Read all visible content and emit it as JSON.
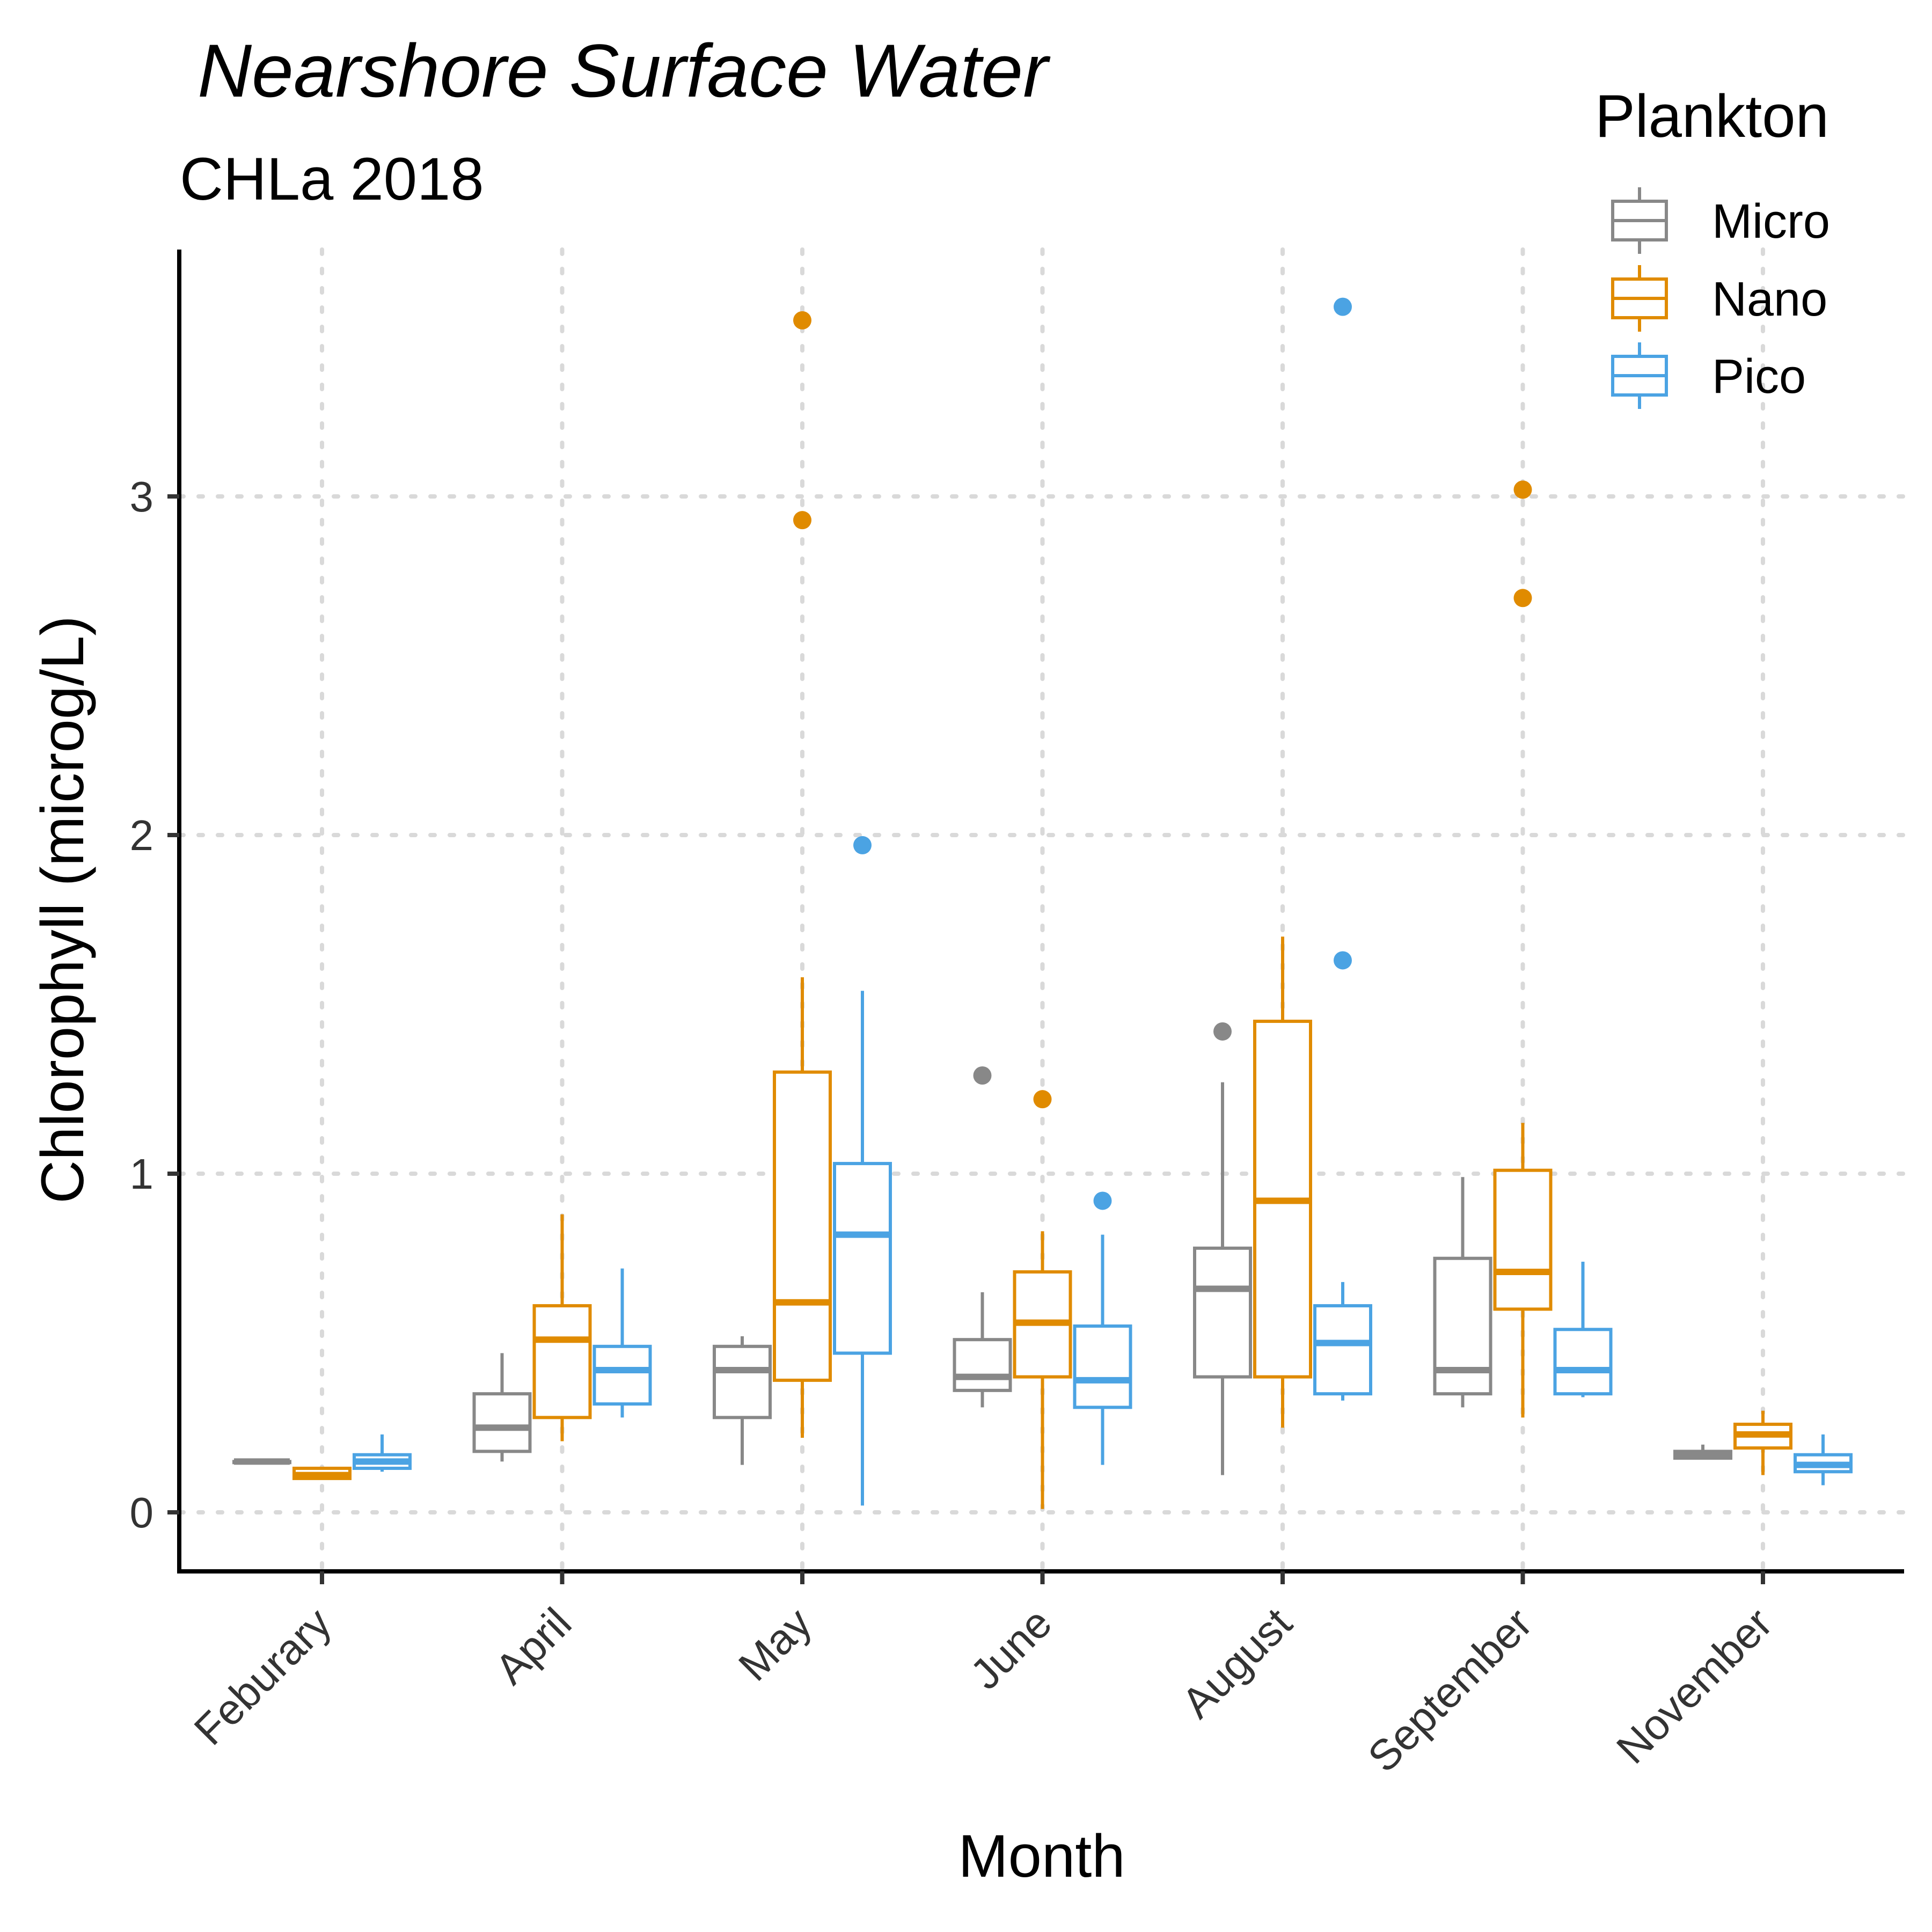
{
  "chart_data": {
    "type": "boxplot",
    "title": "Nearshore Surface Water",
    "subtitle": "CHLa 2018",
    "xlabel": "Month",
    "ylabel": "Chlorophyll (microg/L)",
    "ylim": [
      -0.17,
      3.72
    ],
    "yticks": [
      0,
      1,
      2,
      3
    ],
    "grid": "dotted major gridlines",
    "legend": {
      "title": "Plankton",
      "position": "top-right"
    },
    "categories": [
      "Feburary",
      "April",
      "May",
      "June",
      "August",
      "September",
      "November"
    ],
    "series": [
      {
        "name": "Micro",
        "color": "#888888",
        "boxes": [
          {
            "category": "Feburary",
            "lower": 0.15,
            "q1": 0.15,
            "median": 0.15,
            "q3": 0.15,
            "upper": 0.15,
            "outliers": []
          },
          {
            "category": "April",
            "lower": 0.15,
            "q1": 0.18,
            "median": 0.25,
            "q3": 0.35,
            "upper": 0.47,
            "outliers": []
          },
          {
            "category": "May",
            "lower": 0.14,
            "q1": 0.28,
            "median": 0.42,
            "q3": 0.49,
            "upper": 0.52,
            "outliers": []
          },
          {
            "category": "June",
            "lower": 0.31,
            "q1": 0.36,
            "median": 0.4,
            "q3": 0.51,
            "upper": 0.65,
            "outliers": [
              1.29
            ]
          },
          {
            "category": "August",
            "lower": 0.11,
            "q1": 0.4,
            "median": 0.66,
            "q3": 0.78,
            "upper": 1.27,
            "outliers": [
              1.42
            ]
          },
          {
            "category": "September",
            "lower": 0.31,
            "q1": 0.35,
            "median": 0.42,
            "q3": 0.75,
            "upper": 0.99,
            "outliers": []
          },
          {
            "category": "November",
            "lower": 0.16,
            "q1": 0.16,
            "median": 0.17,
            "q3": 0.18,
            "upper": 0.2,
            "outliers": []
          }
        ]
      },
      {
        "name": "Nano",
        "color": "#E08B00",
        "boxes": [
          {
            "category": "Feburary",
            "lower": 0.1,
            "q1": 0.1,
            "median": 0.11,
            "q3": 0.13,
            "upper": 0.13,
            "outliers": []
          },
          {
            "category": "April",
            "lower": 0.21,
            "q1": 0.28,
            "median": 0.51,
            "q3": 0.61,
            "upper": 0.88,
            "outliers": []
          },
          {
            "category": "May",
            "lower": 0.22,
            "q1": 0.39,
            "median": 0.62,
            "q3": 1.3,
            "upper": 1.58,
            "outliers": [
              2.93,
              3.52
            ]
          },
          {
            "category": "June",
            "lower": 0.01,
            "q1": 0.4,
            "median": 0.56,
            "q3": 0.71,
            "upper": 0.83,
            "outliers": [
              1.22
            ]
          },
          {
            "category": "August",
            "lower": 0.25,
            "q1": 0.4,
            "median": 0.92,
            "q3": 1.45,
            "upper": 1.7,
            "outliers": []
          },
          {
            "category": "September",
            "lower": 0.28,
            "q1": 0.6,
            "median": 0.71,
            "q3": 1.01,
            "upper": 1.15,
            "outliers": [
              2.7,
              3.02
            ]
          },
          {
            "category": "November",
            "lower": 0.11,
            "q1": 0.19,
            "median": 0.23,
            "q3": 0.26,
            "upper": 0.3,
            "outliers": []
          }
        ]
      },
      {
        "name": "Pico",
        "color": "#4BA3E3",
        "boxes": [
          {
            "category": "Feburary",
            "lower": 0.12,
            "q1": 0.13,
            "median": 0.15,
            "q3": 0.17,
            "upper": 0.23,
            "outliers": []
          },
          {
            "category": "April",
            "lower": 0.28,
            "q1": 0.32,
            "median": 0.42,
            "q3": 0.49,
            "upper": 0.72,
            "outliers": []
          },
          {
            "category": "May",
            "lower": 0.02,
            "q1": 0.47,
            "median": 0.82,
            "q3": 1.03,
            "upper": 1.54,
            "outliers": [
              1.97
            ]
          },
          {
            "category": "June",
            "lower": 0.14,
            "q1": 0.31,
            "median": 0.39,
            "q3": 0.55,
            "upper": 0.82,
            "outliers": [
              0.92
            ]
          },
          {
            "category": "August",
            "lower": 0.33,
            "q1": 0.35,
            "median": 0.5,
            "q3": 0.61,
            "upper": 0.68,
            "outliers": [
              1.63,
              3.56
            ]
          },
          {
            "category": "September",
            "lower": 0.34,
            "q1": 0.35,
            "median": 0.42,
            "q3": 0.54,
            "upper": 0.74,
            "outliers": []
          },
          {
            "category": "November",
            "lower": 0.08,
            "q1": 0.12,
            "median": 0.14,
            "q3": 0.17,
            "upper": 0.23,
            "outliers": []
          }
        ]
      }
    ]
  }
}
